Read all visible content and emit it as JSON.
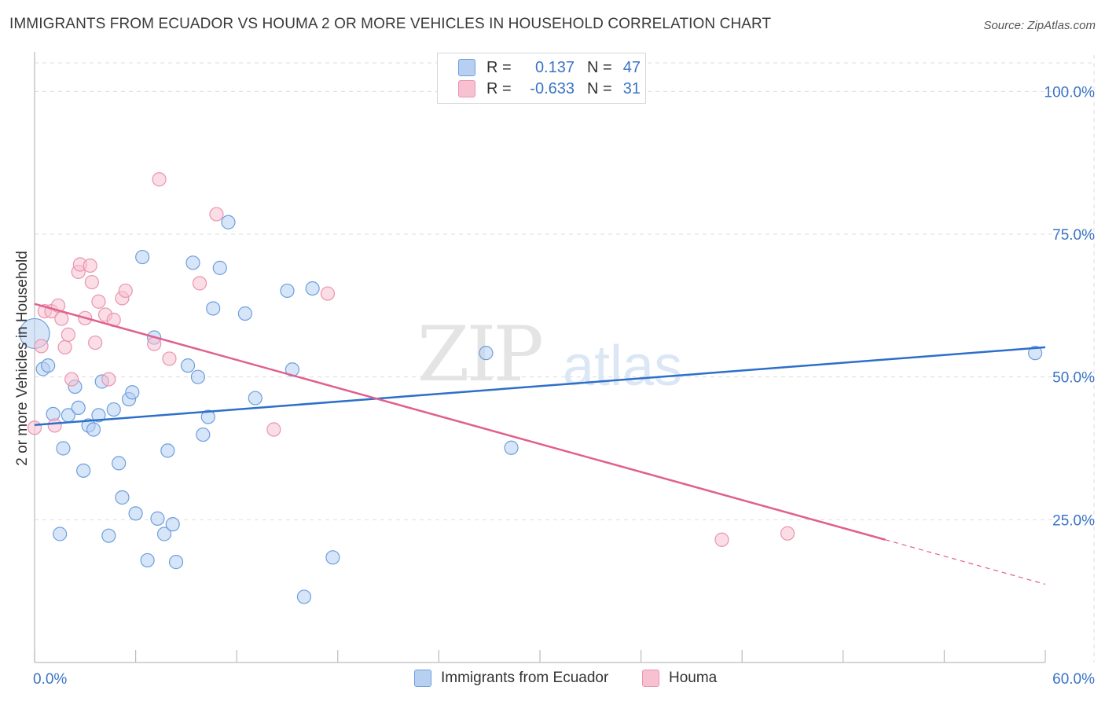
{
  "title": "IMMIGRANTS FROM ECUADOR VS HOUMA 2 OR MORE VEHICLES IN HOUSEHOLD CORRELATION CHART",
  "source": "Source: ZipAtlas.com",
  "watermark": {
    "zip": "ZIP",
    "atlas": "atlas"
  },
  "colors": {
    "blue_fill": "#b7d0f2",
    "blue_stroke": "#6d9fdc",
    "blue_line": "#2c6fcb",
    "pink_fill": "#f7c1d1",
    "pink_stroke": "#e994b0",
    "pink_line": "#e0608e",
    "axis_text": "#3a74c4",
    "grid": "#dddddd"
  },
  "legend": [
    {
      "r_label": "R =",
      "r_value": "0.137",
      "n_label": "N =",
      "n_value": "47"
    },
    {
      "r_label": "R =",
      "r_value": "-0.633",
      "n_label": "N =",
      "n_value": "31"
    }
  ],
  "chart_data": {
    "type": "scatter",
    "title": "IMMIGRANTS FROM ECUADOR VS HOUMA 2 OR MORE VEHICLES IN HOUSEHOLD CORRELATION CHART",
    "xlabel": "",
    "ylabel": "2 or more Vehicles in Household",
    "xlim": [
      0,
      60
    ],
    "ylim": [
      0,
      105
    ],
    "x_tick_labels": [
      "0.0%",
      "60.0%"
    ],
    "y_ticks": [
      25,
      50,
      75,
      100
    ],
    "y_tick_labels": [
      "25.0%",
      "50.0%",
      "75.0%",
      "100.0%"
    ],
    "grid": true,
    "legend_position": "top-center",
    "series": [
      {
        "name": "Immigrants from Ecuador",
        "color": "#6d9fdc",
        "points": [
          [
            0.0,
            57.6
          ],
          [
            0.5,
            51.4
          ],
          [
            0.8,
            52.0
          ],
          [
            1.1,
            43.5
          ],
          [
            1.7,
            37.5
          ],
          [
            1.5,
            22.5
          ],
          [
            2.0,
            43.3
          ],
          [
            2.4,
            48.3
          ],
          [
            2.6,
            44.6
          ],
          [
            2.9,
            33.6
          ],
          [
            3.2,
            41.5
          ],
          [
            3.5,
            40.8
          ],
          [
            3.8,
            43.3
          ],
          [
            4.0,
            49.2
          ],
          [
            4.4,
            22.2
          ],
          [
            4.7,
            44.3
          ],
          [
            5.0,
            34.9
          ],
          [
            5.2,
            28.9
          ],
          [
            5.6,
            46.1
          ],
          [
            5.8,
            47.3
          ],
          [
            6.0,
            26.1
          ],
          [
            6.4,
            71.0
          ],
          [
            6.7,
            17.9
          ],
          [
            7.1,
            56.9
          ],
          [
            7.3,
            25.2
          ],
          [
            7.7,
            22.5
          ],
          [
            7.9,
            37.1
          ],
          [
            8.2,
            24.2
          ],
          [
            8.4,
            17.6
          ],
          [
            9.1,
            52.0
          ],
          [
            9.4,
            70.0
          ],
          [
            9.7,
            50.0
          ],
          [
            10.0,
            39.9
          ],
          [
            10.3,
            43.0
          ],
          [
            10.6,
            62.0
          ],
          [
            11.0,
            69.1
          ],
          [
            11.5,
            77.1
          ],
          [
            12.5,
            61.1
          ],
          [
            13.1,
            46.3
          ],
          [
            15.0,
            65.1
          ],
          [
            15.3,
            51.3
          ],
          [
            16.0,
            11.5
          ],
          [
            16.5,
            65.5
          ],
          [
            17.7,
            18.4
          ],
          [
            26.8,
            54.2
          ],
          [
            28.3,
            37.6
          ],
          [
            59.4,
            54.2
          ]
        ]
      },
      {
        "name": "Houma",
        "color": "#e994b0",
        "points": [
          [
            0.0,
            41.1
          ],
          [
            0.4,
            55.4
          ],
          [
            0.6,
            61.5
          ],
          [
            1.0,
            61.5
          ],
          [
            1.2,
            41.5
          ],
          [
            1.4,
            62.5
          ],
          [
            1.6,
            60.2
          ],
          [
            1.8,
            55.2
          ],
          [
            2.0,
            57.4
          ],
          [
            2.2,
            49.6
          ],
          [
            2.6,
            68.4
          ],
          [
            2.7,
            69.7
          ],
          [
            3.0,
            60.3
          ],
          [
            3.3,
            69.5
          ],
          [
            3.4,
            66.6
          ],
          [
            3.6,
            56.0
          ],
          [
            3.8,
            63.2
          ],
          [
            4.2,
            60.9
          ],
          [
            4.4,
            49.6
          ],
          [
            4.7,
            60.0
          ],
          [
            5.2,
            63.8
          ],
          [
            5.4,
            65.1
          ],
          [
            7.1,
            55.8
          ],
          [
            7.4,
            84.6
          ],
          [
            8.0,
            53.2
          ],
          [
            9.8,
            66.4
          ],
          [
            10.8,
            78.5
          ],
          [
            14.2,
            40.8
          ],
          [
            17.4,
            64.6
          ],
          [
            40.8,
            21.5
          ],
          [
            44.7,
            22.6
          ]
        ]
      }
    ],
    "trendlines": [
      {
        "series": "Immigrants from Ecuador",
        "x": [
          0,
          60
        ],
        "y": [
          41.6,
          55.2
        ]
      },
      {
        "series": "Houma",
        "x": [
          0,
          50.5
        ],
        "y": [
          62.8,
          21.5
        ],
        "dashed_extension": {
          "x": [
            50.5,
            60
          ],
          "y": [
            21.5,
            13.7
          ]
        }
      }
    ]
  }
}
